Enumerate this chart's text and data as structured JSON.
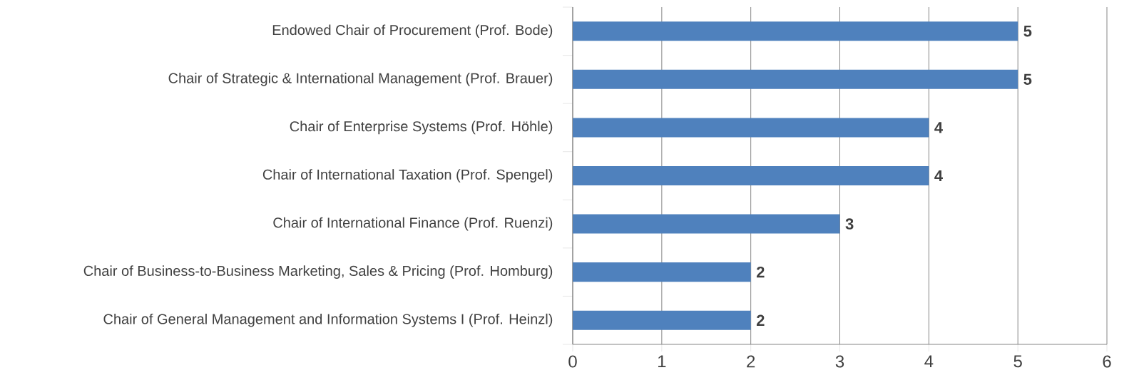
{
  "chart_data": {
    "type": "bar",
    "orientation": "horizontal",
    "categories": [
      "Endowed Chair of Procurement (Prof. Bode)",
      "Chair of Strategic & International Management (Prof. Brauer)",
      "Chair of Enterprise Systems (Prof. Höhle)",
      "Chair of International Taxation (Prof. Spengel)",
      "Chair of International Finance (Prof. Ruenzi)",
      "Chair of Business-to-Business Marketing, Sales & Pricing (Prof. Homburg)",
      "Chair of General Management and Information Systems I (Prof. Heinzl)"
    ],
    "values": [
      5,
      5,
      4,
      4,
      3,
      2,
      2
    ],
    "color": "#4f81bd",
    "xlim": [
      0,
      6
    ],
    "xticks": [
      0,
      1,
      2,
      3,
      4,
      5,
      6
    ],
    "grid": "x",
    "data_labels": true
  }
}
